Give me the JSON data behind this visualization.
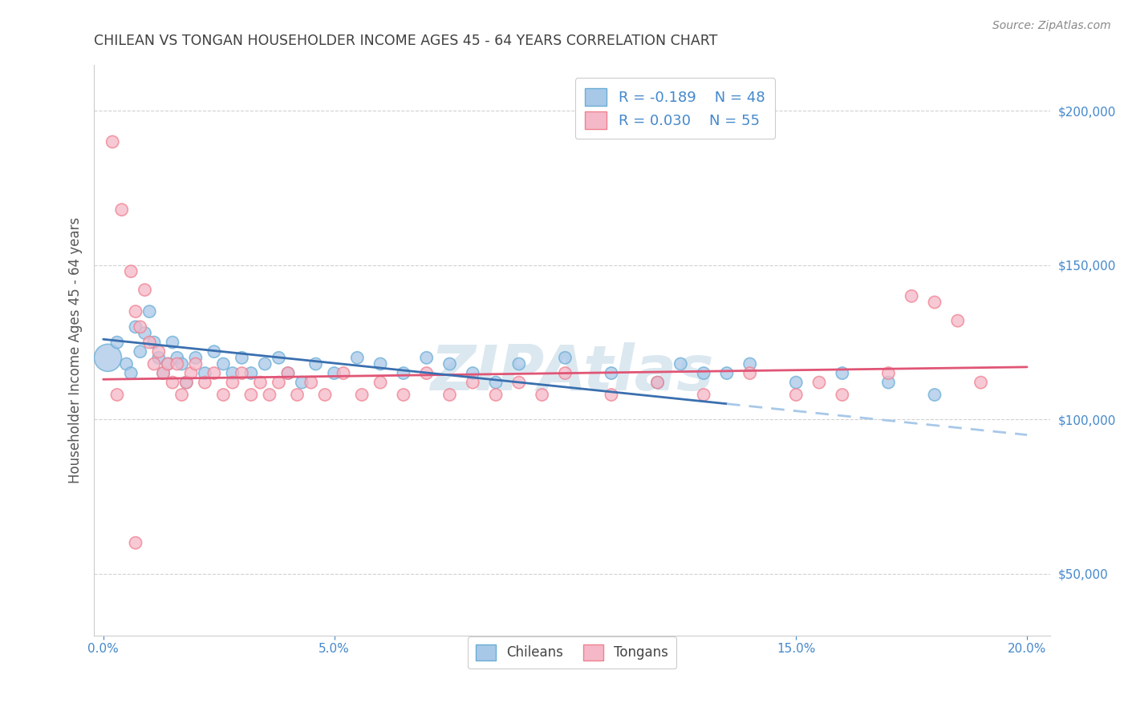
{
  "title": "CHILEAN VS TONGAN HOUSEHOLDER INCOME AGES 45 - 64 YEARS CORRELATION CHART",
  "source": "Source: ZipAtlas.com",
  "ylabel": "Householder Income Ages 45 - 64 years",
  "xlim": [
    -0.002,
    0.205
  ],
  "ylim": [
    30000,
    215000
  ],
  "yticks": [
    50000,
    100000,
    150000,
    200000
  ],
  "ytick_labels": [
    "$50,000",
    "$100,000",
    "$150,000",
    "$200,000"
  ],
  "xticks": [
    0.0,
    0.05,
    0.1,
    0.15,
    0.2
  ],
  "xtick_labels": [
    "0.0%",
    "5.0%",
    "10.0%",
    "15.0%",
    "20.0%"
  ],
  "blue_color": "#a8c8e8",
  "pink_color": "#f4b8c8",
  "blue_edge_color": "#6aaed6",
  "pink_edge_color": "#f08090",
  "blue_line_color": "#3a6faf",
  "pink_line_color": "#e05575",
  "blue_line_dash_color": "#a8c8e8",
  "R_blue": -0.189,
  "N_blue": 48,
  "R_pink": 0.03,
  "N_pink": 55,
  "blue_scatter_x": [
    0.001,
    0.003,
    0.005,
    0.006,
    0.007,
    0.008,
    0.009,
    0.01,
    0.011,
    0.012,
    0.013,
    0.014,
    0.015,
    0.016,
    0.017,
    0.018,
    0.02,
    0.022,
    0.024,
    0.026,
    0.028,
    0.03,
    0.032,
    0.035,
    0.038,
    0.04,
    0.043,
    0.046,
    0.05,
    0.055,
    0.06,
    0.065,
    0.07,
    0.075,
    0.08,
    0.085,
    0.09,
    0.1,
    0.11,
    0.12,
    0.13,
    0.14,
    0.15,
    0.16,
    0.17,
    0.18,
    0.125,
    0.135
  ],
  "blue_scatter_y": [
    120000,
    125000,
    118000,
    115000,
    130000,
    122000,
    128000,
    135000,
    125000,
    120000,
    115000,
    118000,
    125000,
    120000,
    118000,
    112000,
    120000,
    115000,
    122000,
    118000,
    115000,
    120000,
    115000,
    118000,
    120000,
    115000,
    112000,
    118000,
    115000,
    120000,
    118000,
    115000,
    120000,
    118000,
    115000,
    112000,
    118000,
    120000,
    115000,
    112000,
    115000,
    118000,
    112000,
    115000,
    112000,
    108000,
    118000,
    115000
  ],
  "blue_scatter_sizes": [
    600,
    120,
    120,
    120,
    120,
    120,
    120,
    120,
    120,
    120,
    120,
    120,
    120,
    120,
    120,
    120,
    120,
    120,
    120,
    120,
    120,
    120,
    120,
    120,
    120,
    120,
    120,
    120,
    120,
    120,
    120,
    120,
    120,
    120,
    120,
    120,
    120,
    120,
    120,
    120,
    120,
    120,
    120,
    120,
    120,
    120,
    120,
    120
  ],
  "pink_scatter_x": [
    0.002,
    0.004,
    0.006,
    0.007,
    0.008,
    0.009,
    0.01,
    0.011,
    0.012,
    0.013,
    0.014,
    0.015,
    0.016,
    0.017,
    0.018,
    0.019,
    0.02,
    0.022,
    0.024,
    0.026,
    0.028,
    0.03,
    0.032,
    0.034,
    0.036,
    0.038,
    0.04,
    0.042,
    0.045,
    0.048,
    0.052,
    0.056,
    0.06,
    0.065,
    0.07,
    0.075,
    0.08,
    0.085,
    0.09,
    0.095,
    0.1,
    0.11,
    0.12,
    0.13,
    0.14,
    0.15,
    0.155,
    0.16,
    0.17,
    0.175,
    0.18,
    0.185,
    0.19,
    0.007,
    0.003
  ],
  "pink_scatter_y": [
    190000,
    168000,
    148000,
    135000,
    130000,
    142000,
    125000,
    118000,
    122000,
    115000,
    118000,
    112000,
    118000,
    108000,
    112000,
    115000,
    118000,
    112000,
    115000,
    108000,
    112000,
    115000,
    108000,
    112000,
    108000,
    112000,
    115000,
    108000,
    112000,
    108000,
    115000,
    108000,
    112000,
    108000,
    115000,
    108000,
    112000,
    108000,
    112000,
    108000,
    115000,
    108000,
    112000,
    108000,
    115000,
    108000,
    112000,
    108000,
    115000,
    140000,
    138000,
    132000,
    112000,
    60000,
    108000
  ],
  "pink_scatter_sizes": [
    120,
    120,
    120,
    120,
    120,
    120,
    120,
    120,
    120,
    120,
    120,
    120,
    120,
    120,
    120,
    120,
    120,
    120,
    120,
    120,
    120,
    120,
    120,
    120,
    120,
    120,
    120,
    120,
    120,
    120,
    120,
    120,
    120,
    120,
    120,
    120,
    120,
    120,
    120,
    120,
    120,
    120,
    120,
    120,
    120,
    120,
    120,
    120,
    120,
    120,
    120,
    120,
    120,
    120,
    120
  ],
  "background_color": "#ffffff",
  "grid_color": "#cccccc",
  "title_color": "#404040",
  "axis_label_color": "#555555",
  "tick_color": "#4488cc",
  "watermark_color": "#dce8f0"
}
